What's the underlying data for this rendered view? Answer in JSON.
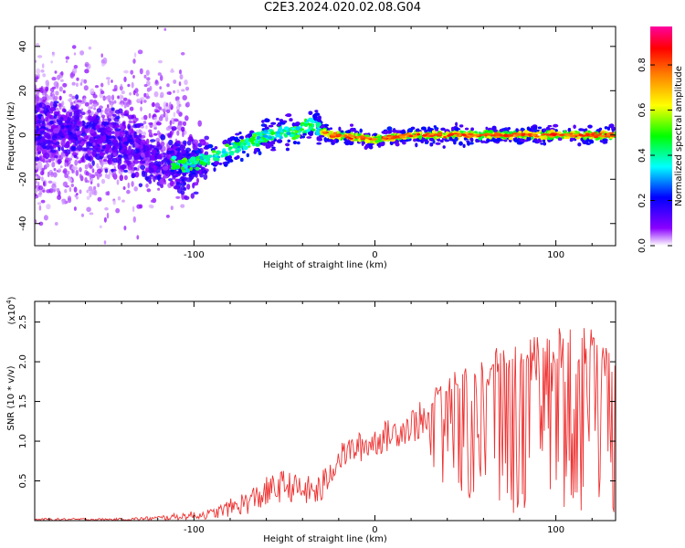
{
  "title": "C2E3.2024.020.02.08.G04",
  "chart_data": [
    {
      "type": "heatmap",
      "xlabel": "Height of straight line (km)",
      "ylabel": "Frequency (Hz)",
      "xlim": [
        -188,
        133
      ],
      "ylim": [
        -50,
        49
      ],
      "xticks": [
        -100,
        0,
        100
      ],
      "yticks": [
        -40,
        -20,
        0,
        20,
        40
      ],
      "colorbar": {
        "label": "Normalized spectral amplitude",
        "range": [
          0.0,
          0.97
        ],
        "ticks": [
          "0.0",
          "0.2",
          "0.4",
          "0.6",
          "0.8"
        ],
        "colors": [
          "#ffffff",
          "#8a00ff",
          "#0000ff",
          "#00ffff",
          "#00ff00",
          "#ffff00",
          "#ff8000",
          "#ff0000",
          "#ff00a0"
        ]
      },
      "ridge": {
        "x": [
          -188,
          -160,
          -130,
          -120,
          -110,
          -105,
          -100,
          -90,
          -80,
          -70,
          -60,
          -50,
          -45,
          -40,
          -35,
          -30,
          -25,
          -20,
          -10,
          0,
          20,
          50,
          80,
          110,
          133
        ],
        "frequency": [
          2,
          1,
          -6,
          -12,
          -13,
          -14,
          -13,
          -10,
          -7,
          -4,
          0,
          2,
          0,
          3,
          5,
          2,
          0,
          0,
          -1,
          -2,
          0,
          0,
          0,
          0,
          0
        ]
      }
    },
    {
      "type": "line",
      "xlabel": "Height of straight line (km)",
      "ylabel": "SNR (10 * v/v)",
      "yscale_label": "(x10",
      "yscale_exp": "4",
      "xlim": [
        -188,
        133
      ],
      "ylim": [
        0,
        27600
      ],
      "xticks": [
        -100,
        0,
        100
      ],
      "yticks": [
        "0.5",
        "1.0",
        "1.5",
        "2.0",
        "2.5"
      ],
      "color": "#ee3333",
      "envelope": {
        "x": [
          -188,
          -140,
          -120,
          -90,
          -70,
          -60,
          -50,
          -40,
          -30,
          -22,
          -15,
          -5,
          5,
          15,
          25,
          35,
          50,
          70,
          90,
          110,
          133
        ],
        "upper": [
          300,
          300,
          600,
          1500,
          4000,
          5500,
          6500,
          5500,
          6000,
          9000,
          10500,
          11500,
          12500,
          13500,
          15000,
          17000,
          20000,
          22000,
          23500,
          25500,
          22000
        ],
        "lower": [
          0,
          0,
          0,
          200,
          800,
          1500,
          2500,
          2000,
          1500,
          5500,
          7000,
          7500,
          8500,
          9500,
          10000,
          5000,
          2000,
          1000,
          800,
          500,
          1000
        ]
      }
    }
  ]
}
